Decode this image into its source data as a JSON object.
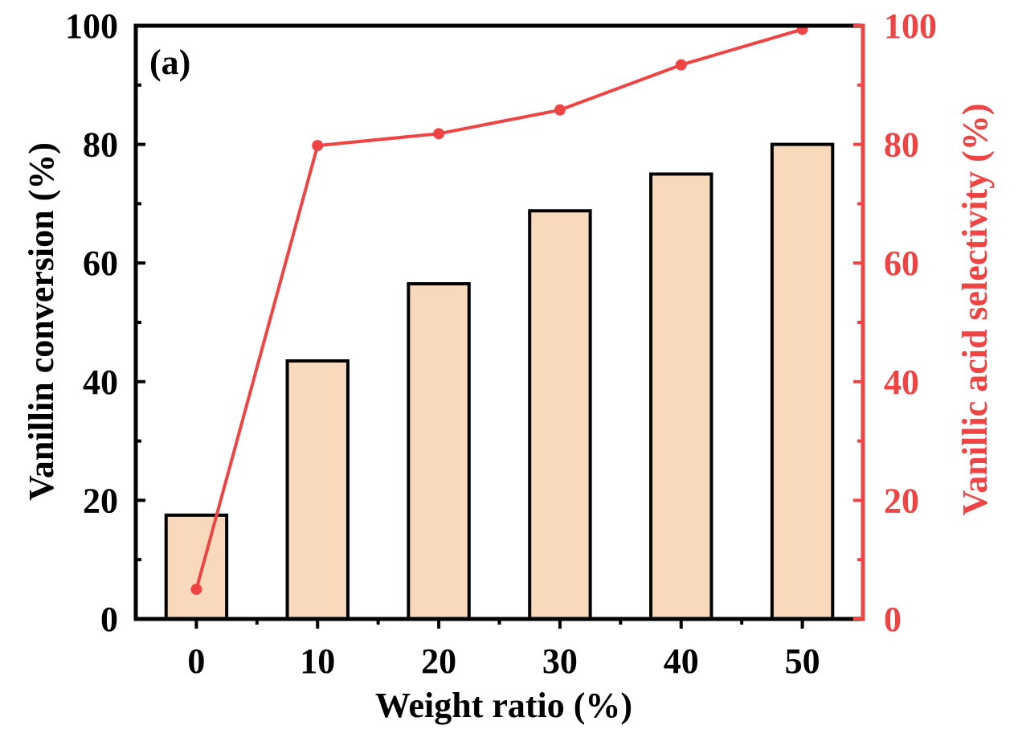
{
  "chart_data": {
    "type": "bar+line",
    "panel_label": "(a)",
    "categories": [
      "0",
      "10",
      "20",
      "30",
      "40",
      "50"
    ],
    "xlabel": "Weight ratio (%)",
    "series": [
      {
        "name": "Vanillin conversion",
        "type": "bar",
        "axis": "left",
        "values": [
          17.5,
          43.5,
          56.5,
          68.8,
          75.0,
          80.0
        ]
      },
      {
        "name": "Vanillic acid selectivity",
        "type": "line",
        "axis": "right",
        "values": [
          5,
          79.8,
          81.8,
          85.8,
          93.4,
          99.4
        ]
      }
    ],
    "y_left": {
      "label": "Vanillin conversion (%)",
      "lim": [
        0,
        100
      ],
      "ticks": [
        "0",
        "20",
        "40",
        "60",
        "80",
        "100"
      ]
    },
    "y_right": {
      "label": "Vanillic acid selectivity (%)",
      "lim": [
        0,
        100
      ],
      "ticks": [
        "0",
        "20",
        "40",
        "60",
        "80",
        "100"
      ]
    },
    "colors": {
      "bar_fill": "#F9D9BC",
      "bar_edge": "#000000",
      "line": "#EE4444",
      "right_axis": "#EE4444",
      "left_axis": "#000000"
    },
    "grid": false
  }
}
